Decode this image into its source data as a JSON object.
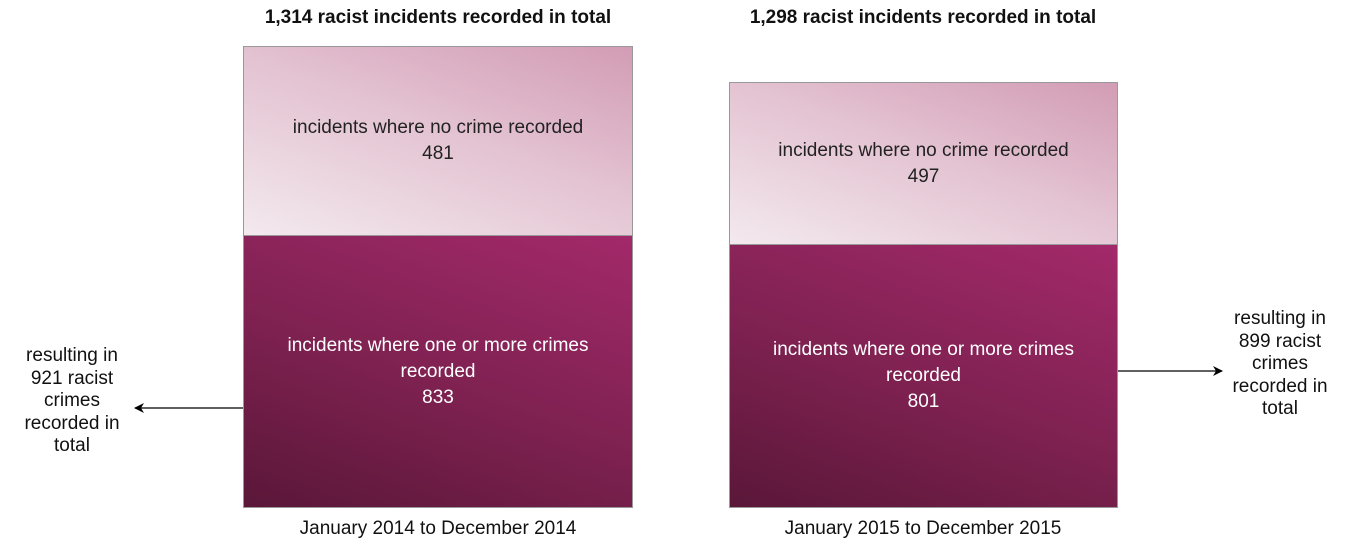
{
  "panels": [
    {
      "title": "1,314 racist incidents recorded in total",
      "segments": [
        {
          "label": "incidents where no crime recorded",
          "value": "481"
        },
        {
          "label": "incidents where one or more crimes recorded",
          "value": "833"
        }
      ],
      "annotation": "resulting in 921 racist crimes recorded in total",
      "period": "January 2014 to December 2014"
    },
    {
      "title": "1,298 racist incidents recorded in total",
      "segments": [
        {
          "label": "incidents where no crime recorded",
          "value": "497"
        },
        {
          "label": "incidents where one or more crimes recorded",
          "value": "801"
        }
      ],
      "annotation": "resulting in 899 racist crimes recorded in total",
      "period": "January 2015 to December 2015"
    }
  ]
}
